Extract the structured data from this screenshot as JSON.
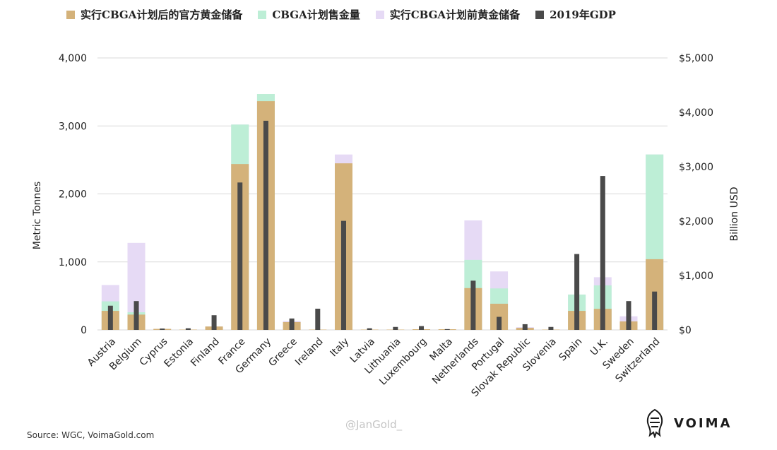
{
  "legend": {
    "after": "实行CBGA计划后的官方黄金储备",
    "sold": "CBGA计划售金量",
    "before": "实行CBGA计划前黄金储备",
    "gdp": "2019年GDP"
  },
  "colors": {
    "after": "#d4b27a",
    "sold": "#bdeed6",
    "before": "#e6daf5",
    "gdp": "#4a4a4a",
    "grid": "#d9d9d9"
  },
  "source": "Source: WGC, VoimaGold.com",
  "watermark": "@JanGold_",
  "logo": {
    "text": "VOIMA",
    "icon": "voima-lion-icon"
  },
  "chart_data": {
    "type": "bar",
    "categories": [
      "Austria",
      "Belgium",
      "Cyprus",
      "Estonia",
      "Finland",
      "France",
      "Germany",
      "Greece",
      "Ireland",
      "Italy",
      "Latvia",
      "Lithuania",
      "Luxembourg",
      "Malta",
      "Netherlands",
      "Portugal",
      "Slovak Republic",
      "Slovenia",
      "Spain",
      "U.K.",
      "Sweden",
      "Switzerland"
    ],
    "series": [
      {
        "name": "实行CBGA计划前黄金储备",
        "axis": "left",
        "values": [
          660,
          1280,
          15,
          5,
          50,
          3020,
          3470,
          130,
          5,
          2580,
          5,
          5,
          10,
          10,
          1610,
          860,
          40,
          5,
          520,
          775,
          200,
          2580
        ]
      },
      {
        "name": "实行CBGA计划后的官方黄金储备",
        "axis": "left",
        "values": [
          280,
          225,
          15,
          5,
          50,
          2440,
          3365,
          115,
          5,
          2450,
          5,
          5,
          10,
          10,
          615,
          385,
          30,
          5,
          280,
          310,
          125,
          1040
        ]
      },
      {
        "name": "CBGA计划售金量",
        "axis": "left",
        "values": [
          420,
          260,
          0,
          0,
          0,
          3020,
          3470,
          0,
          0,
          0,
          0,
          0,
          0,
          0,
          1030,
          610,
          0,
          0,
          520,
          655,
          0,
          2580
        ]
      },
      {
        "name": "2019年GDP",
        "axis": "right",
        "values": [
          445,
          530,
          25,
          30,
          270,
          2710,
          3845,
          210,
          390,
          2005,
          30,
          55,
          70,
          15,
          905,
          240,
          105,
          55,
          1395,
          2830,
          530,
          705
        ]
      }
    ],
    "yaxis_left": {
      "label": "Metric Tonnes",
      "min": 0,
      "max": 4000,
      "ticks": [
        "0",
        "1,000",
        "2,000",
        "3,000",
        "4,000"
      ]
    },
    "yaxis_right": {
      "label": "Billion USD",
      "min": 0,
      "max": 5000,
      "ticks": [
        "$0",
        "$1,000",
        "$2,000",
        "$3,000",
        "$4,000",
        "$5,000"
      ]
    },
    "grid": true,
    "legend_position": "top"
  }
}
